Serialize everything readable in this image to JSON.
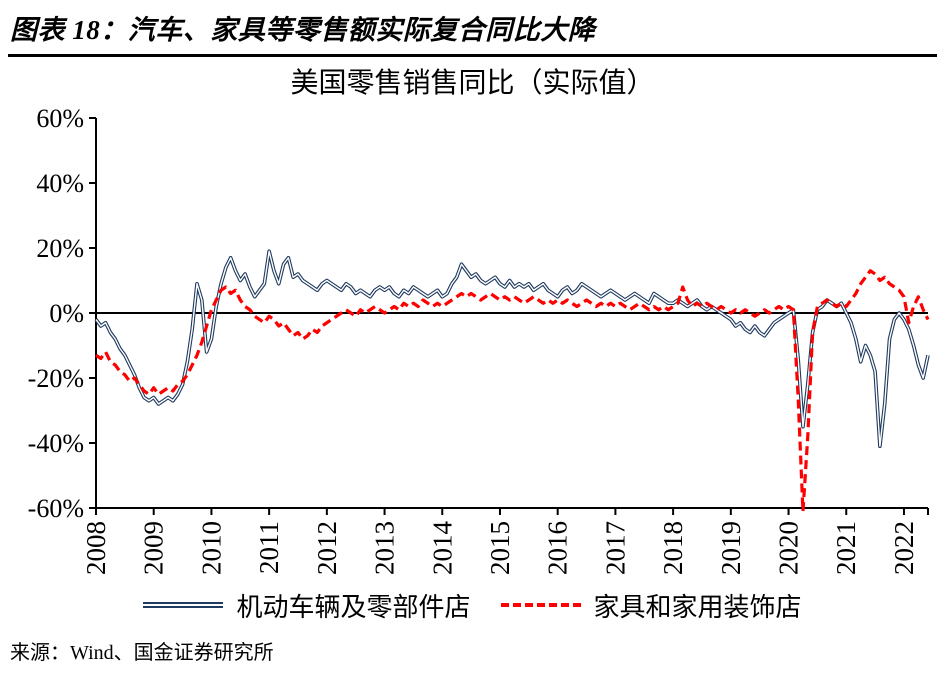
{
  "header": {
    "title": "图表 18：汽车、家具等零售额实际复合同比大降"
  },
  "chart_data": {
    "type": "line",
    "title": "美国零售销售同比（实际值）",
    "x_frequency": "monthly",
    "x_range": [
      "2008-01",
      "2022-06"
    ],
    "year_labels": [
      "2008",
      "2009",
      "2010",
      "2011",
      "2012",
      "2013",
      "2014",
      "2015",
      "2016",
      "2017",
      "2018",
      "2019",
      "2020",
      "2021",
      "2022"
    ],
    "ylim": [
      -60,
      60
    ],
    "y_tick_values": [
      60,
      40,
      20,
      0,
      -20,
      -40,
      -60
    ],
    "y_tick_labels": [
      "60%",
      "40%",
      "20%",
      "0%",
      "-20%",
      "-40%",
      "-60%"
    ],
    "grid": false,
    "zero_line": true,
    "legend_position": "bottom",
    "series": [
      {
        "name": "机动车辆及零部件店",
        "color": "#1F3A5F",
        "line_style": "double-solid",
        "values": [
          -2,
          -4,
          -3,
          -6,
          -8,
          -11,
          -13,
          -16,
          -19,
          -23,
          -26,
          -27,
          -26,
          -28,
          -27,
          -26,
          -27,
          -25,
          -22,
          -15,
          -5,
          9,
          4,
          -12,
          -8,
          2,
          9,
          14,
          17,
          13,
          10,
          12,
          8,
          5,
          7,
          9,
          19,
          13,
          9,
          15,
          17,
          11,
          12,
          10,
          9,
          8,
          7,
          9,
          10,
          9,
          8,
          7,
          9,
          8,
          6,
          7,
          6,
          5,
          7,
          8,
          7,
          8,
          6,
          5,
          7,
          6,
          8,
          7,
          6,
          5,
          6,
          7,
          5,
          6,
          9,
          11,
          15,
          13,
          11,
          12,
          10,
          9,
          10,
          11,
          9,
          8,
          10,
          8,
          9,
          8,
          9,
          7,
          8,
          9,
          7,
          6,
          5,
          7,
          8,
          6,
          7,
          9,
          8,
          7,
          6,
          5,
          6,
          7,
          6,
          5,
          4,
          5,
          6,
          5,
          4,
          3,
          6,
          5,
          4,
          3,
          3,
          4,
          3,
          2,
          3,
          4,
          2,
          1,
          2,
          1,
          0,
          -1,
          -2,
          -4,
          -3,
          -5,
          -6,
          -4,
          -6,
          -7,
          -5,
          -3,
          -2,
          -1,
          0,
          1,
          -14,
          -35,
          -22,
          -6,
          1,
          2,
          4,
          3,
          2,
          3,
          0,
          -3,
          -8,
          -15,
          -10,
          -13,
          -18,
          -41,
          -28,
          -8,
          -2,
          0,
          -2,
          -5,
          -10,
          -16,
          -20,
          -13
        ]
      },
      {
        "name": "家具和家用装饰店",
        "color": "#FF0000",
        "line_style": "dashed",
        "values": [
          -13,
          -14,
          -12,
          -15,
          -16,
          -18,
          -19,
          -21,
          -20,
          -22,
          -24,
          -25,
          -23,
          -25,
          -24,
          -23,
          -24,
          -22,
          -21,
          -19,
          -16,
          -13,
          -9,
          -4,
          1,
          4,
          7,
          8,
          6,
          7,
          4,
          2,
          1,
          -1,
          -2,
          -3,
          -1,
          -2,
          -4,
          -3,
          -5,
          -7,
          -6,
          -8,
          -7,
          -5,
          -6,
          -4,
          -3,
          -2,
          -1,
          0,
          1,
          0,
          -1,
          1,
          0,
          1,
          2,
          1,
          0,
          1,
          2,
          1,
          3,
          2,
          3,
          2,
          4,
          3,
          2,
          3,
          2,
          3,
          4,
          5,
          6,
          5,
          6,
          5,
          4,
          5,
          6,
          5,
          4,
          5,
          4,
          5,
          4,
          3,
          4,
          5,
          4,
          3,
          4,
          3,
          4,
          3,
          4,
          3,
          2,
          3,
          4,
          3,
          2,
          3,
          2,
          3,
          2,
          3,
          2,
          1,
          2,
          3,
          2,
          1,
          2,
          1,
          2,
          1,
          2,
          3,
          8,
          4,
          2,
          3,
          2,
          3,
          2,
          1,
          2,
          1,
          0,
          1,
          0,
          1,
          0,
          -1,
          0,
          1,
          0,
          1,
          2,
          1,
          2,
          1,
          -26,
          -61,
          -38,
          -6,
          2,
          3,
          4,
          3,
          2,
          3,
          2,
          4,
          6,
          9,
          11,
          13,
          12,
          10,
          11,
          9,
          8,
          7,
          5,
          -3,
          2,
          5,
          1,
          -2
        ]
      }
    ]
  },
  "footer": {
    "source": "来源：Wind、国金证券研究所"
  }
}
